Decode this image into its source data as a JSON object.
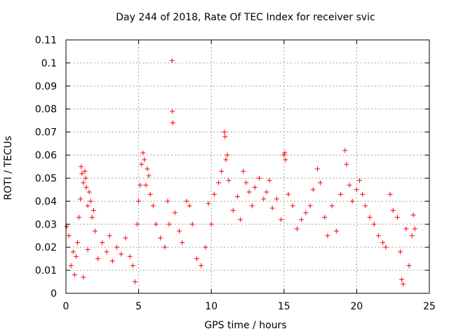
{
  "colors": {
    "points": "#ff0000",
    "axis": "#000000",
    "grid": "#a0a0a0",
    "background": "#ffffff"
  },
  "chart_data": {
    "type": "scatter",
    "title": "Day 244 of 2018, Rate Of TEC Index for receiver svic",
    "xlabel": "GPS time / hours",
    "ylabel": "ROTI / TECUs",
    "xlim": [
      0,
      25
    ],
    "ylim": [
      0,
      0.11
    ],
    "xticks": [
      0,
      5,
      10,
      15,
      20,
      25
    ],
    "xtick_labels": [
      "0",
      "5",
      "10",
      "15",
      "20",
      "25"
    ],
    "yticks": [
      0,
      0.01,
      0.02,
      0.03,
      0.04,
      0.05,
      0.06,
      0.07,
      0.08,
      0.09,
      0.1,
      0.11
    ],
    "ytick_labels": [
      "0",
      "0.01",
      "0.02",
      "0.03",
      "0.04",
      "0.05",
      "0.06",
      "0.07",
      "0.08",
      "0.09",
      "0.1",
      "0.11"
    ],
    "grid": true,
    "marker": "plus",
    "series": [
      {
        "name": "ROTI",
        "points": [
          [
            0.05,
            0.029
          ],
          [
            0.2,
            0.025
          ],
          [
            0.35,
            0.012
          ],
          [
            0.5,
            0.018
          ],
          [
            0.7,
            0.016
          ],
          [
            0.8,
            0.022
          ],
          [
            0.9,
            0.033
          ],
          [
            1.0,
            0.041
          ],
          [
            1.05,
            0.055
          ],
          [
            1.1,
            0.052
          ],
          [
            1.2,
            0.048
          ],
          [
            1.3,
            0.053
          ],
          [
            1.35,
            0.05
          ],
          [
            1.4,
            0.046
          ],
          [
            1.5,
            0.038
          ],
          [
            1.6,
            0.044
          ],
          [
            1.7,
            0.04
          ],
          [
            1.8,
            0.033
          ],
          [
            1.9,
            0.036
          ],
          [
            2.0,
            0.027
          ],
          [
            0.6,
            0.008
          ],
          [
            1.2,
            0.007
          ],
          [
            1.5,
            0.019
          ],
          [
            2.2,
            0.015
          ],
          [
            2.5,
            0.022
          ],
          [
            2.8,
            0.018
          ],
          [
            3.0,
            0.025
          ],
          [
            3.2,
            0.014
          ],
          [
            3.5,
            0.02
          ],
          [
            3.8,
            0.017
          ],
          [
            4.1,
            0.024
          ],
          [
            4.4,
            0.016
          ],
          [
            4.6,
            0.012
          ],
          [
            4.75,
            0.005
          ],
          [
            4.9,
            0.03
          ],
          [
            5.0,
            0.04
          ],
          [
            5.1,
            0.047
          ],
          [
            5.2,
            0.056
          ],
          [
            5.3,
            0.061
          ],
          [
            5.4,
            0.058
          ],
          [
            5.5,
            0.047
          ],
          [
            5.6,
            0.054
          ],
          [
            5.7,
            0.051
          ],
          [
            5.8,
            0.043
          ],
          [
            6.0,
            0.038
          ],
          [
            6.2,
            0.03
          ],
          [
            6.5,
            0.024
          ],
          [
            6.8,
            0.02
          ],
          [
            7.0,
            0.04
          ],
          [
            7.1,
            0.03
          ],
          [
            7.3,
            0.101
          ],
          [
            7.32,
            0.079
          ],
          [
            7.35,
            0.074
          ],
          [
            7.5,
            0.035
          ],
          [
            7.8,
            0.027
          ],
          [
            8.0,
            0.022
          ],
          [
            8.3,
            0.04
          ],
          [
            8.5,
            0.038
          ],
          [
            8.7,
            0.03
          ],
          [
            9.0,
            0.015
          ],
          [
            9.3,
            0.012
          ],
          [
            9.6,
            0.02
          ],
          [
            9.8,
            0.039
          ],
          [
            10.0,
            0.03
          ],
          [
            10.2,
            0.043
          ],
          [
            10.5,
            0.048
          ],
          [
            10.7,
            0.053
          ],
          [
            10.9,
            0.07
          ],
          [
            10.95,
            0.068
          ],
          [
            11.0,
            0.058
          ],
          [
            11.1,
            0.06
          ],
          [
            11.2,
            0.049
          ],
          [
            11.5,
            0.036
          ],
          [
            11.8,
            0.042
          ],
          [
            12.0,
            0.032
          ],
          [
            12.2,
            0.053
          ],
          [
            12.4,
            0.048
          ],
          [
            12.6,
            0.044
          ],
          [
            12.8,
            0.038
          ],
          [
            13.0,
            0.046
          ],
          [
            13.3,
            0.05
          ],
          [
            13.6,
            0.041
          ],
          [
            13.8,
            0.044
          ],
          [
            14.0,
            0.049
          ],
          [
            14.2,
            0.037
          ],
          [
            14.5,
            0.041
          ],
          [
            14.8,
            0.032
          ],
          [
            15.0,
            0.06
          ],
          [
            15.05,
            0.061
          ],
          [
            15.1,
            0.058
          ],
          [
            15.3,
            0.043
          ],
          [
            15.6,
            0.038
          ],
          [
            15.9,
            0.028
          ],
          [
            16.2,
            0.032
          ],
          [
            16.5,
            0.035
          ],
          [
            16.8,
            0.038
          ],
          [
            17.0,
            0.045
          ],
          [
            17.3,
            0.054
          ],
          [
            17.5,
            0.048
          ],
          [
            17.8,
            0.033
          ],
          [
            18.0,
            0.025
          ],
          [
            18.3,
            0.038
          ],
          [
            18.6,
            0.027
          ],
          [
            18.9,
            0.043
          ],
          [
            19.2,
            0.062
          ],
          [
            19.3,
            0.056
          ],
          [
            19.5,
            0.047
          ],
          [
            19.7,
            0.04
          ],
          [
            20.0,
            0.045
          ],
          [
            20.2,
            0.049
          ],
          [
            20.4,
            0.043
          ],
          [
            20.6,
            0.038
          ],
          [
            20.9,
            0.033
          ],
          [
            21.2,
            0.03
          ],
          [
            21.5,
            0.025
          ],
          [
            21.8,
            0.022
          ],
          [
            22.0,
            0.02
          ],
          [
            22.3,
            0.043
          ],
          [
            22.5,
            0.036
          ],
          [
            22.8,
            0.033
          ],
          [
            23.0,
            0.018
          ],
          [
            23.1,
            0.006
          ],
          [
            23.2,
            0.004
          ],
          [
            23.4,
            0.028
          ],
          [
            23.6,
            0.012
          ],
          [
            23.8,
            0.025
          ],
          [
            23.9,
            0.034
          ],
          [
            24.0,
            0.028
          ]
        ]
      }
    ]
  }
}
